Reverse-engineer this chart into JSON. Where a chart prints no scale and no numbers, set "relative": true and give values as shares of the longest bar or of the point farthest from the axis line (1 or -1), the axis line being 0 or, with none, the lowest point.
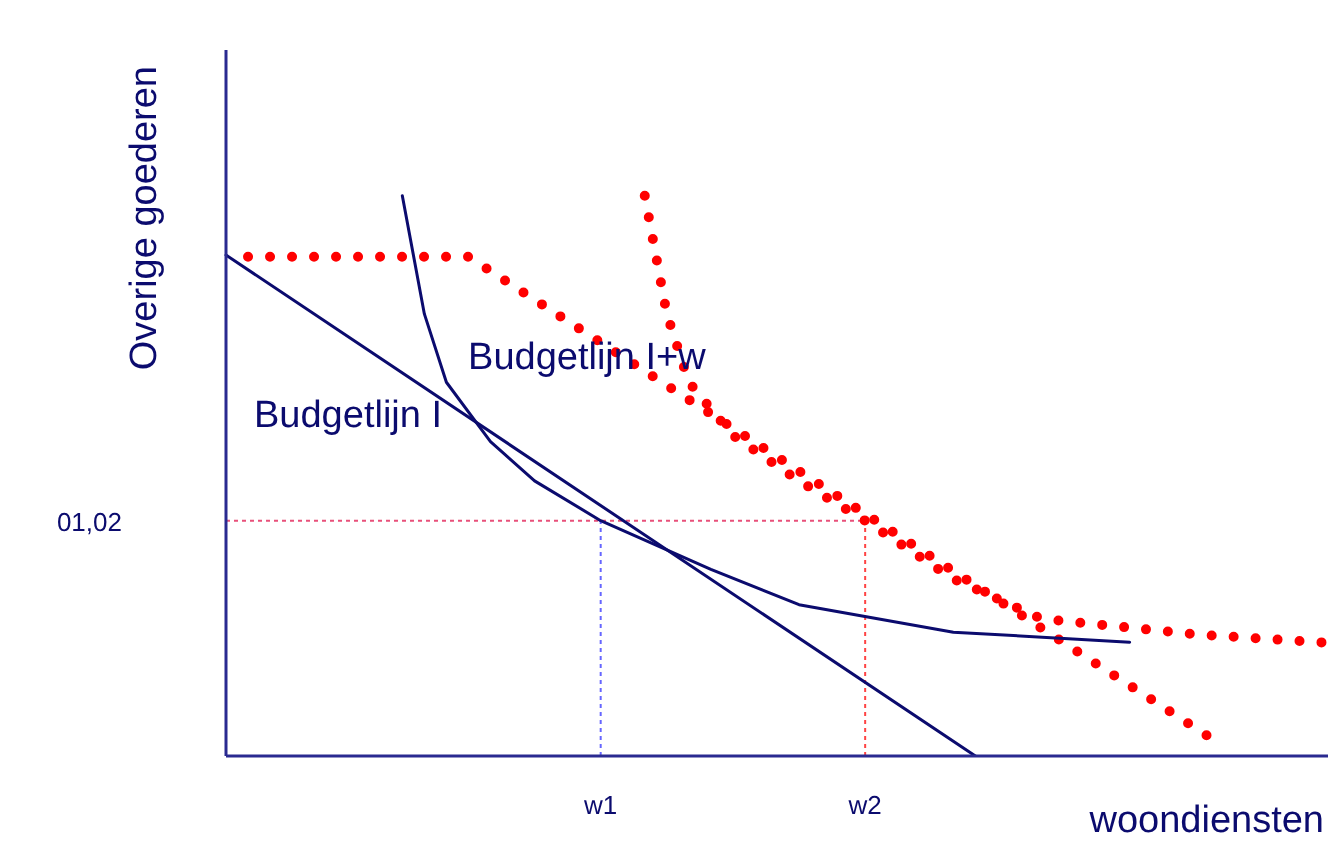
{
  "chart_data": {
    "type": "line",
    "relative": true,
    "xlabel": "woondiensten",
    "ylabel": "Overige goederen",
    "categories": [
      null,
      null,
      null,
      null,
      null,
      null,
      null,
      null,
      null,
      null,
      null,
      null,
      null,
      null,
      null,
      null,
      null,
      "w1",
      null,
      null,
      null,
      null,
      null,
      null,
      null,
      null,
      null,
      null,
      null,
      "w2",
      null,
      null,
      null,
      null,
      null,
      null,
      null,
      null,
      null,
      null,
      null,
      null,
      null,
      null,
      null,
      null,
      null,
      null,
      null,
      null,
      null
    ],
    "grid": false,
    "legend": false,
    "marker": "none",
    "annotations": [
      "01,02"
    ],
    "ref_lines": [
      {
        "axis": "y",
        "value": 0.42,
        "label": null,
        "color": "#e8507a",
        "line_style": "dashed"
      },
      {
        "axis": "x",
        "value": "w1",
        "label": null,
        "color": "#6666ff",
        "line_style": "dashed"
      },
      {
        "axis": "x",
        "value": "w2",
        "label": null,
        "color": "#ff4444",
        "line_style": "dashed"
      }
    ],
    "series": [
      {
        "name": "Budgetlijn I",
        "color": "#0b0b6e",
        "line_style": "solid",
        "values": [
          0.894,
          null,
          null,
          null,
          null,
          null,
          null,
          null,
          null,
          null,
          null,
          null,
          null,
          null,
          null,
          null,
          null,
          null,
          null,
          null,
          null,
          null,
          null,
          null,
          null,
          null,
          null,
          null,
          null,
          null,
          null,
          null,
          null,
          null,
          0,
          null,
          null,
          null,
          null,
          null,
          null,
          null,
          null,
          null,
          null,
          null,
          null,
          null,
          null,
          null,
          null
        ]
      },
      {
        "name": "Budgetlijn I+w",
        "color": "#ff0000",
        "line_style": "dotted",
        "values": [
          null,
          0.891,
          null,
          null,
          null,
          null,
          null,
          null,
          null,
          null,
          null,
          0.891,
          null,
          null,
          null,
          null,
          null,
          null,
          null,
          null,
          null,
          null,
          null,
          null,
          null,
          null,
          null,
          null,
          null,
          null,
          null,
          null,
          null,
          null,
          null,
          null,
          null,
          null,
          null,
          null,
          null,
          null,
          null,
          null,
          null,
          0.024,
          null,
          null,
          null,
          null,
          null
        ]
      },
      {
        "color": "#0b0b6e",
        "line_style": "solid",
        "values": [
          null,
          null,
          null,
          null,
          null,
          null,
          null,
          null,
          1.0,
          0.789,
          0.667,
          null,
          0.561,
          null,
          0.491,
          null,
          null,
          0.42,
          null,
          null,
          null,
          null,
          0.333,
          null,
          null,
          null,
          0.27,
          null,
          null,
          null,
          null,
          null,
          null,
          0.221,
          null,
          null,
          null,
          null,
          null,
          null,
          null,
          0.203,
          null,
          null,
          null,
          null,
          null,
          null,
          null,
          null,
          null
        ]
      },
      {
        "color": "#ff0000",
        "line_style": "dotted",
        "values": [
          null,
          null,
          null,
          null,
          null,
          null,
          null,
          null,
          null,
          null,
          null,
          null,
          null,
          null,
          null,
          null,
          null,
          null,
          null,
          1.0,
          0.789,
          0.667,
          null,
          0.572,
          null,
          null,
          0.491,
          null,
          null,
          0.42,
          null,
          null,
          null,
          0.316,
          null,
          null,
          null,
          0.245,
          null,
          null,
          null,
          null,
          null,
          null,
          0.217,
          null,
          null,
          null,
          null,
          null,
          0.202
        ]
      }
    ]
  }
}
